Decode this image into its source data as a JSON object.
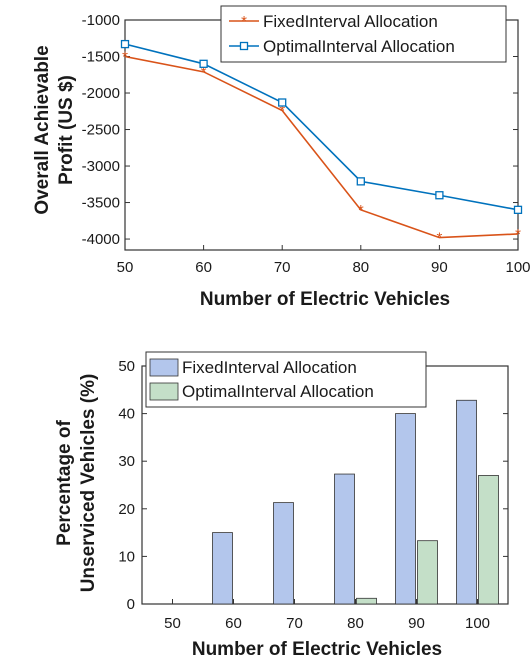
{
  "chart_data": [
    {
      "type": "line",
      "xlabel": "Number of Electric Vehicles",
      "ylabel": [
        "Overall Achievable",
        "Profit (US $)"
      ],
      "x": [
        50,
        60,
        70,
        80,
        90,
        100
      ],
      "xticks": [
        "50",
        "60",
        "70",
        "80",
        "90",
        "100"
      ],
      "yticks": [
        "-1000",
        "-1500",
        "-2000",
        "-2500",
        "-3000",
        "-3500",
        "-4000"
      ],
      "xlim": [
        50,
        100
      ],
      "ylim": [
        -4150,
        -1000
      ],
      "legend_position": "top-right",
      "series": [
        {
          "name": "FixedInterval Allocation",
          "values": [
            -1500,
            -1710,
            -2240,
            -3600,
            -3980,
            -3930
          ],
          "color": "#d95319",
          "marker": "star"
        },
        {
          "name": "OptimalInterval Allocation",
          "values": [
            -1330,
            -1600,
            -2130,
            -3210,
            -3400,
            -3600
          ],
          "color": "#0072bd",
          "marker": "square"
        }
      ]
    },
    {
      "type": "bar",
      "xlabel": "Number of Electric Vehicles",
      "ylabel": [
        "Percentage of",
        "Unserviced Vehicles (%)"
      ],
      "categories": [
        "50",
        "60",
        "70",
        "80",
        "90",
        "100"
      ],
      "yticks": [
        "0",
        "10",
        "20",
        "30",
        "40",
        "50"
      ],
      "ylim": [
        0,
        50
      ],
      "legend_position": "top-left",
      "series": [
        {
          "name": "FixedInterval Allocation",
          "values": [
            0,
            15,
            21.3,
            27.3,
            40,
            42.8
          ],
          "color": "#b3c6ec"
        },
        {
          "name": "OptimalInterval Allocation",
          "values": [
            0,
            0,
            0,
            1.2,
            13.3,
            27
          ],
          "color": "#c4dfc8"
        }
      ]
    }
  ]
}
